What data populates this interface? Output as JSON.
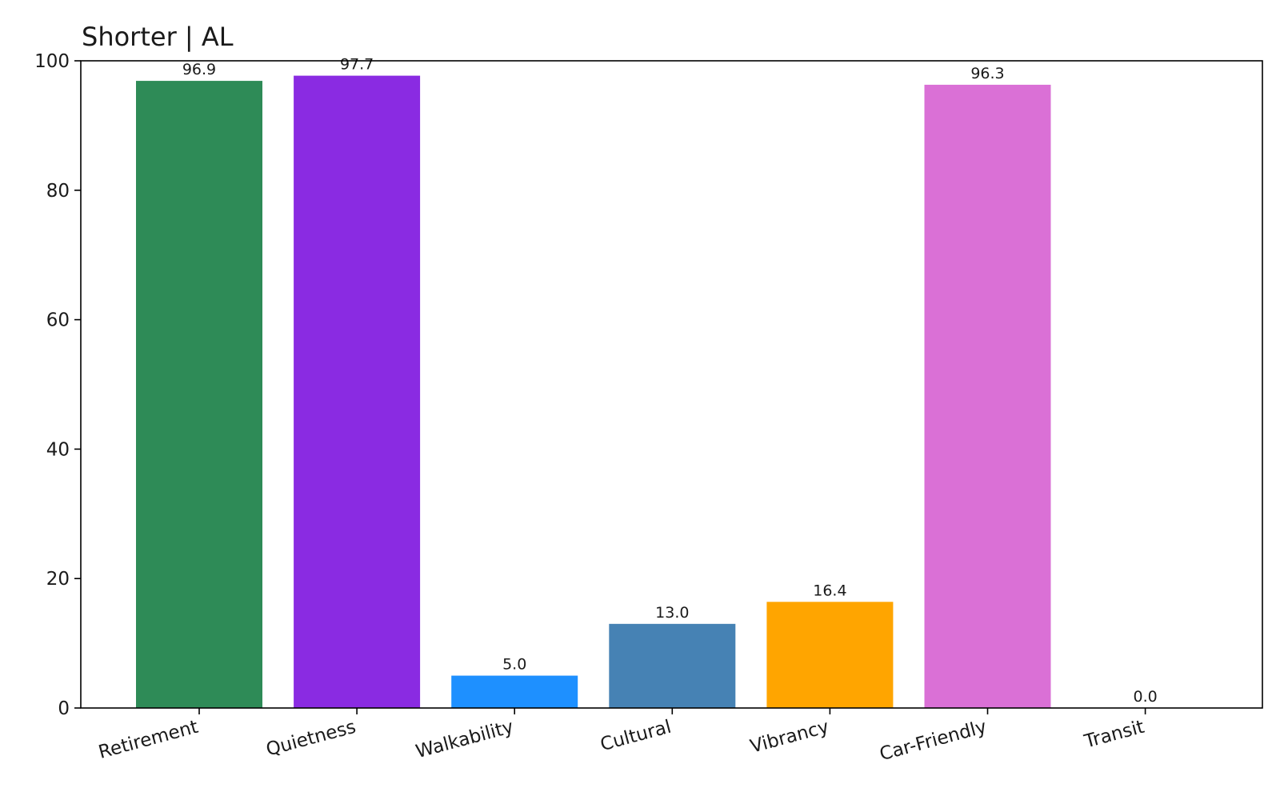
{
  "chart_data": {
    "type": "bar",
    "title": "Shorter | AL",
    "xlabel": "",
    "ylabel": "",
    "categories": [
      "Retirement",
      "Quietness",
      "Walkability",
      "Cultural",
      "Vibrancy",
      "Car-Friendly",
      "Transit"
    ],
    "values": [
      96.9,
      97.7,
      5.0,
      13.0,
      16.4,
      96.3,
      0.0
    ],
    "value_labels": [
      "96.9",
      "97.7",
      "5.0",
      "13.0",
      "16.4",
      "96.3",
      "0.0"
    ],
    "colors": [
      "#2e8b57",
      "#8a2be2",
      "#1e90ff",
      "#4682b4",
      "#ffa500",
      "#da70d6",
      "#808080"
    ],
    "ylim": [
      0,
      100
    ],
    "yticks": [
      0,
      20,
      40,
      60,
      80,
      100
    ],
    "grid": false,
    "legend": "none"
  }
}
